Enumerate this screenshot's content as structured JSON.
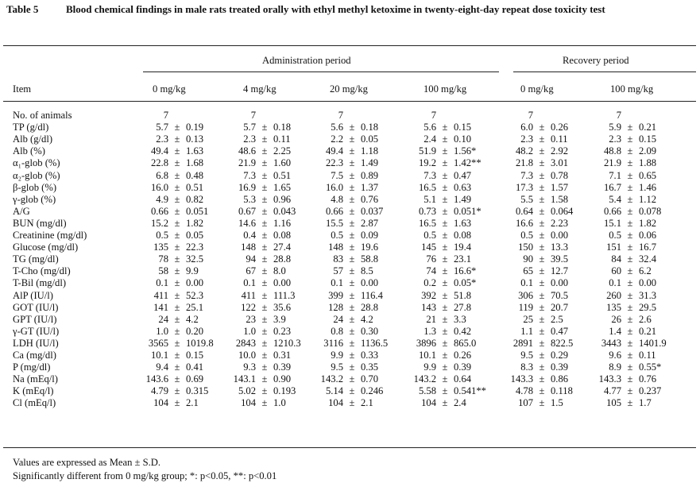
{
  "table": {
    "number": "Table 5",
    "title": "Blood chemical findings in male rats treated orally with ethyl methyl ketoxime in twenty-eight-day repeat dose toxicity test",
    "group_headers": {
      "admin": "Administration period",
      "recovery": "Recovery period"
    },
    "columns": [
      "Item",
      "0 mg/kg",
      "4 mg/kg",
      "20 mg/kg",
      "100 mg/kg",
      "0 mg/kg",
      "100 mg/kg"
    ],
    "rows": [
      {
        "item": "No. of animals",
        "cells": [
          [
            "7",
            "",
            ""
          ],
          [
            "7",
            "",
            ""
          ],
          [
            "7",
            "",
            ""
          ],
          [
            "7",
            "",
            ""
          ],
          [
            "7",
            "",
            ""
          ],
          [
            "7",
            "",
            ""
          ]
        ]
      },
      {
        "item": "TP (g/dl)",
        "cells": [
          [
            "5.7",
            "±",
            "0.19"
          ],
          [
            "5.7",
            "±",
            "0.18"
          ],
          [
            "5.6",
            "±",
            "0.18"
          ],
          [
            "5.6",
            "±",
            "0.15"
          ],
          [
            "6.0",
            "±",
            "0.26"
          ],
          [
            "5.9",
            "±",
            "0.21"
          ]
        ]
      },
      {
        "item": "Alb (g/dl)",
        "cells": [
          [
            "2.3",
            "±",
            "0.13"
          ],
          [
            "2.3",
            "±",
            "0.11"
          ],
          [
            "2.2",
            "±",
            "0.05"
          ],
          [
            "2.4",
            "±",
            "0.10"
          ],
          [
            "2.3",
            "±",
            "0.11"
          ],
          [
            "2.3",
            "±",
            "0.15"
          ]
        ]
      },
      {
        "item": "Alb (%)",
        "cells": [
          [
            "49.4",
            "±",
            "1.63"
          ],
          [
            "48.6",
            "±",
            "2.25"
          ],
          [
            "49.4",
            "±",
            "1.18"
          ],
          [
            "51.9",
            "±",
            "1.56*"
          ],
          [
            "48.2",
            "±",
            "2.92"
          ],
          [
            "48.8",
            "±",
            "2.09"
          ]
        ]
      },
      {
        "item": "α₁-glob (%)",
        "cells": [
          [
            "22.8",
            "±",
            "1.68"
          ],
          [
            "21.9",
            "±",
            "1.60"
          ],
          [
            "22.3",
            "±",
            "1.49"
          ],
          [
            "19.2",
            "±",
            "1.42**"
          ],
          [
            "21.8",
            "±",
            "3.01"
          ],
          [
            "21.9",
            "±",
            "1.88"
          ]
        ]
      },
      {
        "item": "α₂-glob (%)",
        "cells": [
          [
            "6.8",
            "±",
            "0.48"
          ],
          [
            "7.3",
            "±",
            "0.51"
          ],
          [
            "7.5",
            "±",
            "0.89"
          ],
          [
            "7.3",
            "±",
            "0.47"
          ],
          [
            "7.3",
            "±",
            "0.78"
          ],
          [
            "7.1",
            "±",
            "0.65"
          ]
        ]
      },
      {
        "item": "β-glob (%)",
        "cells": [
          [
            "16.0",
            "±",
            "0.51"
          ],
          [
            "16.9",
            "±",
            "1.65"
          ],
          [
            "16.0",
            "±",
            "1.37"
          ],
          [
            "16.5",
            "±",
            "0.63"
          ],
          [
            "17.3",
            "±",
            "1.57"
          ],
          [
            "16.7",
            "±",
            "1.46"
          ]
        ]
      },
      {
        "item": "γ-glob (%)",
        "cells": [
          [
            "4.9",
            "±",
            "0.82"
          ],
          [
            "5.3",
            "±",
            "0.96"
          ],
          [
            "4.8",
            "±",
            "0.76"
          ],
          [
            "5.1",
            "±",
            "1.49"
          ],
          [
            "5.5",
            "±",
            "1.58"
          ],
          [
            "5.4",
            "±",
            "1.12"
          ]
        ]
      },
      {
        "item": "A/G",
        "cells": [
          [
            "0.66",
            "±",
            "0.051"
          ],
          [
            "0.67",
            "±",
            "0.043"
          ],
          [
            "0.66",
            "±",
            "0.037"
          ],
          [
            "0.73",
            "±",
            "0.051*"
          ],
          [
            "0.64",
            "±",
            "0.064"
          ],
          [
            "0.66",
            "±",
            "0.078"
          ]
        ]
      },
      {
        "item": "BUN (mg/dl)",
        "cells": [
          [
            "15.2",
            "±",
            "1.82"
          ],
          [
            "14.6",
            "±",
            "1.16"
          ],
          [
            "15.5",
            "±",
            "2.87"
          ],
          [
            "16.5",
            "±",
            "1.63"
          ],
          [
            "16.6",
            "±",
            "2.23"
          ],
          [
            "15.1",
            "±",
            "1.82"
          ]
        ]
      },
      {
        "item": "Creatinine (mg/dl)",
        "cells": [
          [
            "0.5",
            "±",
            "0.05"
          ],
          [
            "0.4",
            "±",
            "0.08"
          ],
          [
            "0.5",
            "±",
            "0.09"
          ],
          [
            "0.5",
            "±",
            "0.08"
          ],
          [
            "0.5",
            "±",
            "0.00"
          ],
          [
            "0.5",
            "±",
            "0.06"
          ]
        ]
      },
      {
        "item": "Glucose (mg/dl)",
        "cells": [
          [
            "135",
            "±",
            "22.3"
          ],
          [
            "148",
            "±",
            "27.4"
          ],
          [
            "148",
            "±",
            "19.6"
          ],
          [
            "145",
            "±",
            "19.4"
          ],
          [
            "150",
            "±",
            "13.3"
          ],
          [
            "151",
            "±",
            "16.7"
          ]
        ]
      },
      {
        "item": "TG (mg/dl)",
        "cells": [
          [
            "78",
            "±",
            "32.5"
          ],
          [
            "94",
            "±",
            "28.8"
          ],
          [
            "83",
            "±",
            "58.8"
          ],
          [
            "76",
            "±",
            "23.1"
          ],
          [
            "90",
            "±",
            "39.5"
          ],
          [
            "84",
            "±",
            "32.4"
          ]
        ]
      },
      {
        "item": "T-Cho (mg/dl)",
        "cells": [
          [
            "58",
            "±",
            "9.9"
          ],
          [
            "67",
            "±",
            "8.0"
          ],
          [
            "57",
            "±",
            "8.5"
          ],
          [
            "74",
            "±",
            "16.6*"
          ],
          [
            "65",
            "±",
            "12.7"
          ],
          [
            "60",
            "±",
            "6.2"
          ]
        ]
      },
      {
        "item": "T-Bil (mg/dl)",
        "cells": [
          [
            "0.1",
            "±",
            "0.00"
          ],
          [
            "0.1",
            "±",
            "0.00"
          ],
          [
            "0.1",
            "±",
            "0.00"
          ],
          [
            "0.2",
            "±",
            "0.05*"
          ],
          [
            "0.1",
            "±",
            "0.00"
          ],
          [
            "0.1",
            "±",
            "0.00"
          ]
        ]
      },
      {
        "item": "AlP (IU/l)",
        "cells": [
          [
            "411",
            "±",
            "52.3"
          ],
          [
            "411",
            "±",
            "111.3"
          ],
          [
            "399",
            "±",
            "116.4"
          ],
          [
            "392",
            "±",
            "51.8"
          ],
          [
            "306",
            "±",
            "70.5"
          ],
          [
            "260",
            "±",
            "31.3"
          ]
        ]
      },
      {
        "item": "GOT (IU/l)",
        "cells": [
          [
            "141",
            "±",
            "25.1"
          ],
          [
            "122",
            "±",
            "35.6"
          ],
          [
            "128",
            "±",
            "28.8"
          ],
          [
            "143",
            "±",
            "27.8"
          ],
          [
            "119",
            "±",
            "20.7"
          ],
          [
            "135",
            "±",
            "29.5"
          ]
        ]
      },
      {
        "item": "GPT (IU/l)",
        "cells": [
          [
            "24",
            "±",
            "4.2"
          ],
          [
            "23",
            "±",
            "3.9"
          ],
          [
            "24",
            "±",
            "4.2"
          ],
          [
            "21",
            "±",
            "3.3"
          ],
          [
            "25",
            "±",
            "2.5"
          ],
          [
            "26",
            "±",
            "2.6"
          ]
        ]
      },
      {
        "item": "γ-GT (IU/l)",
        "cells": [
          [
            "1.0",
            "±",
            "0.20"
          ],
          [
            "1.0",
            "±",
            "0.23"
          ],
          [
            "0.8",
            "±",
            "0.30"
          ],
          [
            "1.3",
            "±",
            "0.42"
          ],
          [
            "1.1",
            "±",
            "0.47"
          ],
          [
            "1.4",
            "±",
            "0.21"
          ]
        ]
      },
      {
        "item": "LDH (IU/l)",
        "cells": [
          [
            "3565",
            "±",
            "1019.8"
          ],
          [
            "2843",
            "±",
            "1210.3"
          ],
          [
            "3116",
            "±",
            "1136.5"
          ],
          [
            "3896",
            "±",
            "865.0"
          ],
          [
            "2891",
            "±",
            "822.5"
          ],
          [
            "3443",
            "±",
            "1401.9"
          ]
        ]
      },
      {
        "item": "Ca (mg/dl)",
        "cells": [
          [
            "10.1",
            "±",
            "0.15"
          ],
          [
            "10.0",
            "±",
            "0.31"
          ],
          [
            "9.9",
            "±",
            "0.33"
          ],
          [
            "10.1",
            "±",
            "0.26"
          ],
          [
            "9.5",
            "±",
            "0.29"
          ],
          [
            "9.6",
            "±",
            "0.11"
          ]
        ]
      },
      {
        "item": "P (mg/dl)",
        "cells": [
          [
            "9.4",
            "±",
            "0.41"
          ],
          [
            "9.3",
            "±",
            "0.39"
          ],
          [
            "9.5",
            "±",
            "0.35"
          ],
          [
            "9.9",
            "±",
            "0.39"
          ],
          [
            "8.3",
            "±",
            "0.39"
          ],
          [
            "8.9",
            "±",
            "0.55*"
          ]
        ]
      },
      {
        "item": "Na (mEq/l)",
        "cells": [
          [
            "143.6",
            "±",
            "0.69"
          ],
          [
            "143.1",
            "±",
            "0.90"
          ],
          [
            "143.2",
            "±",
            "0.70"
          ],
          [
            "143.2",
            "±",
            "0.64"
          ],
          [
            "143.3",
            "±",
            "0.86"
          ],
          [
            "143.3",
            "±",
            "0.76"
          ]
        ]
      },
      {
        "item": "K (mEq/l)",
        "cells": [
          [
            "4.79",
            "±",
            "0.315"
          ],
          [
            "5.02",
            "±",
            "0.193"
          ],
          [
            "5.14",
            "±",
            "0.246"
          ],
          [
            "5.58",
            "±",
            "0.541**"
          ],
          [
            "4.78",
            "±",
            "0.118"
          ],
          [
            "4.77",
            "±",
            "0.237"
          ]
        ]
      },
      {
        "item": "Cl (mEq/l)",
        "cells": [
          [
            "104",
            "±",
            "2.1"
          ],
          [
            "104",
            "±",
            "1.0"
          ],
          [
            "104",
            "±",
            "2.1"
          ],
          [
            "104",
            "±",
            "2.4"
          ],
          [
            "107",
            "±",
            "1.5"
          ],
          [
            "105",
            "±",
            "1.7"
          ]
        ]
      }
    ],
    "notes": [
      "Values are expressed as Mean ± S.D.",
      "Significantly different from 0 mg/kg group;  *: p<0.05, **: p<0.01"
    ]
  }
}
